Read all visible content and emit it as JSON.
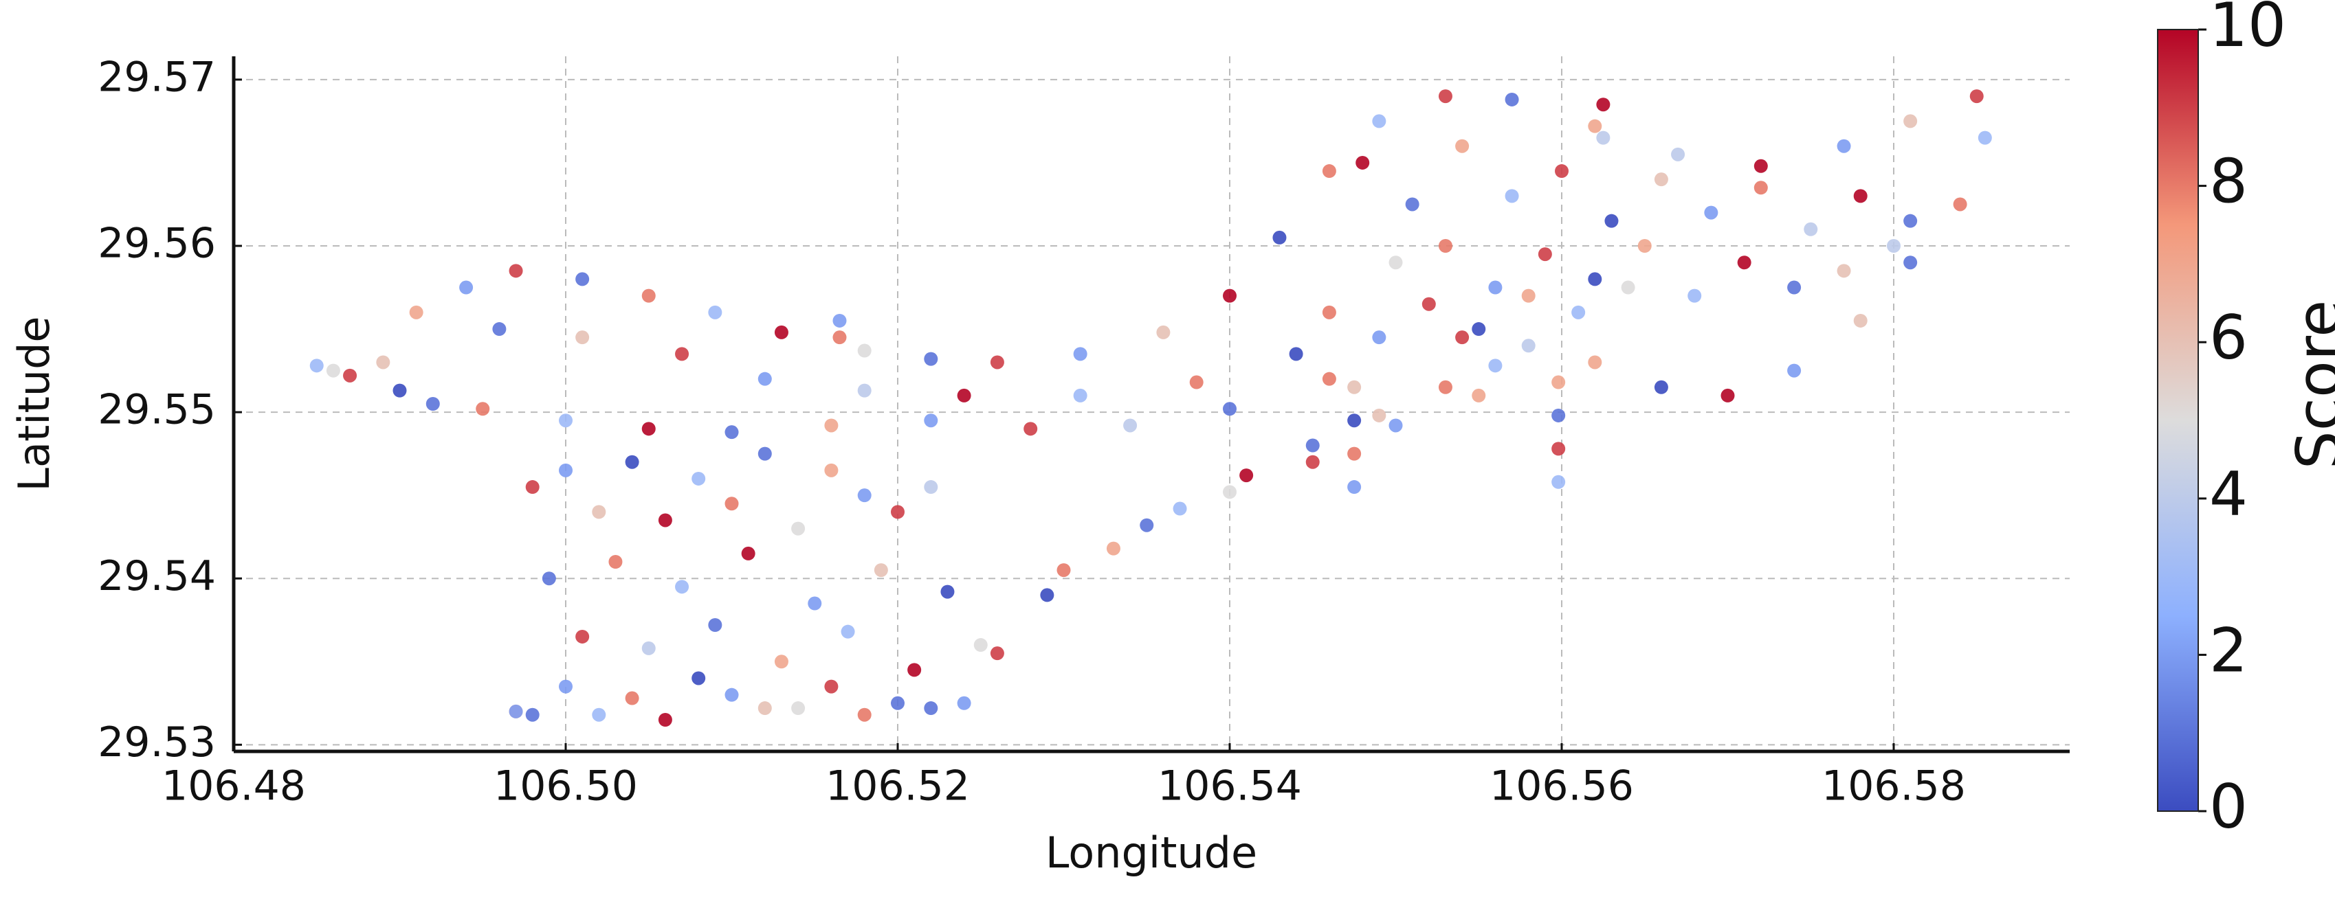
{
  "chart_data": {
    "type": "scatter",
    "xlabel": "Longitude",
    "ylabel": "Latitude",
    "colorbar_label": "Score",
    "xlim": [
      106.48,
      106.5906
    ],
    "ylim": [
      29.5296,
      29.5714
    ],
    "xticks": [
      {
        "value": 106.48,
        "label": "106.48"
      },
      {
        "value": 106.5,
        "label": "106.50"
      },
      {
        "value": 106.52,
        "label": "106.52"
      },
      {
        "value": 106.54,
        "label": "106.54"
      },
      {
        "value": 106.56,
        "label": "106.56"
      },
      {
        "value": 106.58,
        "label": "106.58"
      }
    ],
    "yticks": [
      29.53,
      29.54,
      29.55,
      29.56,
      29.57
    ],
    "clim": [
      0,
      10
    ],
    "cticks": [
      0,
      2,
      4,
      6,
      8,
      10
    ],
    "grid": true,
    "x": [
      106.491,
      106.494,
      106.497,
      106.501,
      106.505,
      106.509,
      106.513,
      106.518,
      106.522,
      106.526,
      106.531,
      106.536,
      106.54,
      106.543,
      106.546,
      106.549,
      106.553,
      106.557,
      106.562,
      106.567,
      106.572,
      106.577,
      106.581,
      106.585,
      106.5855,
      106.584,
      106.581,
      106.578,
      106.574,
      106.57,
      106.566,
      106.562,
      106.558,
      106.554,
      106.496,
      106.501,
      106.507,
      106.512,
      106.518,
      106.524,
      106.531,
      106.538,
      106.544,
      106.486,
      106.49,
      106.495,
      106.5,
      106.505,
      106.51,
      106.516,
      106.522,
      106.528,
      106.534,
      106.54,
      106.546,
      106.524,
      106.526,
      106.529,
      106.533,
      106.537,
      106.541,
      106.545,
      106.549,
      106.553,
      106.556,
      106.53,
      106.535,
      106.54,
      106.545,
      106.55,
      106.555,
      106.498,
      106.5,
      106.502,
      106.504,
      106.506,
      106.508,
      106.51,
      106.512,
      106.514,
      106.516,
      106.518,
      106.52,
      106.522,
      106.499,
      106.503,
      106.507,
      106.511,
      106.515,
      106.519,
      106.523,
      106.501,
      106.505,
      106.509,
      106.513,
      106.517,
      106.521,
      106.525,
      106.5,
      106.504,
      106.508,
      106.512,
      106.516,
      106.52,
      106.497,
      106.502,
      106.506,
      106.51,
      106.514,
      106.518,
      106.522,
      106.548,
      106.551,
      106.554,
      106.557,
      106.56,
      106.563,
      106.566,
      106.569,
      106.572,
      106.575,
      106.578,
      106.581,
      106.55,
      106.553,
      106.556,
      106.559,
      106.562,
      106.565,
      106.568,
      106.571,
      106.574,
      106.577,
      106.58,
      106.546,
      106.549,
      106.552,
      106.555,
      106.558,
      106.561,
      106.564,
      106.5475,
      106.5475,
      106.5475,
      106.5475,
      106.5598,
      106.5598,
      106.5598,
      106.5598,
      106.5625,
      106.5625,
      106.5165,
      106.5165,
      106.485,
      106.487,
      106.489,
      106.492,
      106.497,
      106.498
    ],
    "y": [
      29.556,
      29.5575,
      29.5585,
      29.558,
      29.557,
      29.556,
      29.5548,
      29.5537,
      29.5532,
      29.553,
      29.5535,
      29.5548,
      29.557,
      29.5605,
      29.5645,
      29.5675,
      29.569,
      29.5688,
      29.5672,
      29.5655,
      29.5648,
      29.566,
      29.5675,
      29.569,
      29.5665,
      29.5625,
      29.559,
      29.5555,
      29.5525,
      29.551,
      29.5515,
      29.553,
      29.554,
      29.5545,
      29.555,
      29.5545,
      29.5535,
      29.552,
      29.5513,
      29.551,
      29.551,
      29.5518,
      29.5535,
      29.5525,
      29.5513,
      29.5502,
      29.5495,
      29.549,
      29.5488,
      29.5492,
      29.5495,
      29.549,
      29.5492,
      29.5502,
      29.552,
      29.5325,
      29.5355,
      29.539,
      29.5418,
      29.5442,
      29.5462,
      29.548,
      29.5498,
      29.5515,
      29.5528,
      29.5405,
      29.5432,
      29.5452,
      29.547,
      29.5492,
      29.551,
      29.5455,
      29.5465,
      29.544,
      29.547,
      29.5435,
      29.546,
      29.5445,
      29.5475,
      29.543,
      29.5465,
      29.545,
      29.544,
      29.5455,
      29.54,
      29.541,
      29.5395,
      29.5415,
      29.5385,
      29.5405,
      29.5392,
      29.5365,
      29.5358,
      29.5372,
      29.535,
      29.5368,
      29.5345,
      29.536,
      29.5335,
      29.5328,
      29.534,
      29.5322,
      29.5335,
      29.5325,
      29.532,
      29.5318,
      29.5315,
      29.533,
      29.5322,
      29.5318,
      29.5322,
      29.565,
      29.5625,
      29.566,
      29.563,
      29.5645,
      29.5615,
      29.564,
      29.562,
      29.5635,
      29.561,
      29.563,
      29.5615,
      29.559,
      29.56,
      29.5575,
      29.5595,
      29.558,
      29.56,
      29.557,
      29.559,
      29.5575,
      29.5585,
      29.56,
      29.556,
      29.5545,
      29.5565,
      29.555,
      29.557,
      29.556,
      29.5575,
      29.5455,
      29.5475,
      29.5495,
      29.5515,
      29.5458,
      29.5478,
      29.5498,
      29.5518,
      29.5665,
      29.5685,
      29.5545,
      29.5555,
      29.5528,
      29.5522,
      29.553,
      29.5505,
      29.532,
      29.5318
    ],
    "values": [
      7,
      2,
      9,
      1,
      8,
      3,
      10,
      5,
      1,
      9,
      2,
      6,
      10,
      0,
      8,
      3,
      9,
      1,
      7,
      4,
      10,
      2,
      6,
      9,
      3,
      8,
      1,
      6,
      2,
      10,
      0,
      7,
      4,
      9,
      1,
      6,
      9,
      2,
      4,
      10,
      3,
      8,
      0,
      5,
      0,
      8,
      3,
      10,
      1,
      7,
      2,
      9,
      4,
      1,
      8,
      2,
      9,
      0,
      7,
      3,
      10,
      1,
      6,
      8,
      3,
      8,
      1,
      5,
      9,
      2,
      7,
      9,
      2,
      6,
      0,
      10,
      3,
      8,
      1,
      5,
      7,
      2,
      9,
      4,
      1,
      8,
      3,
      10,
      2,
      6,
      0,
      9,
      4,
      1,
      7,
      3,
      10,
      5,
      2,
      8,
      0,
      6,
      9,
      1,
      7,
      3,
      10,
      2,
      5,
      8,
      1,
      10,
      1,
      7,
      3,
      9,
      0,
      6,
      2,
      8,
      4,
      10,
      1,
      5,
      8,
      2,
      9,
      0,
      7,
      3,
      10,
      1,
      6,
      4,
      8,
      2,
      9,
      0,
      7,
      3,
      5,
      2,
      8,
      0,
      6,
      3,
      9,
      1,
      7,
      4,
      10,
      8,
      2,
      3,
      9,
      6,
      1,
      2,
      1
    ]
  }
}
